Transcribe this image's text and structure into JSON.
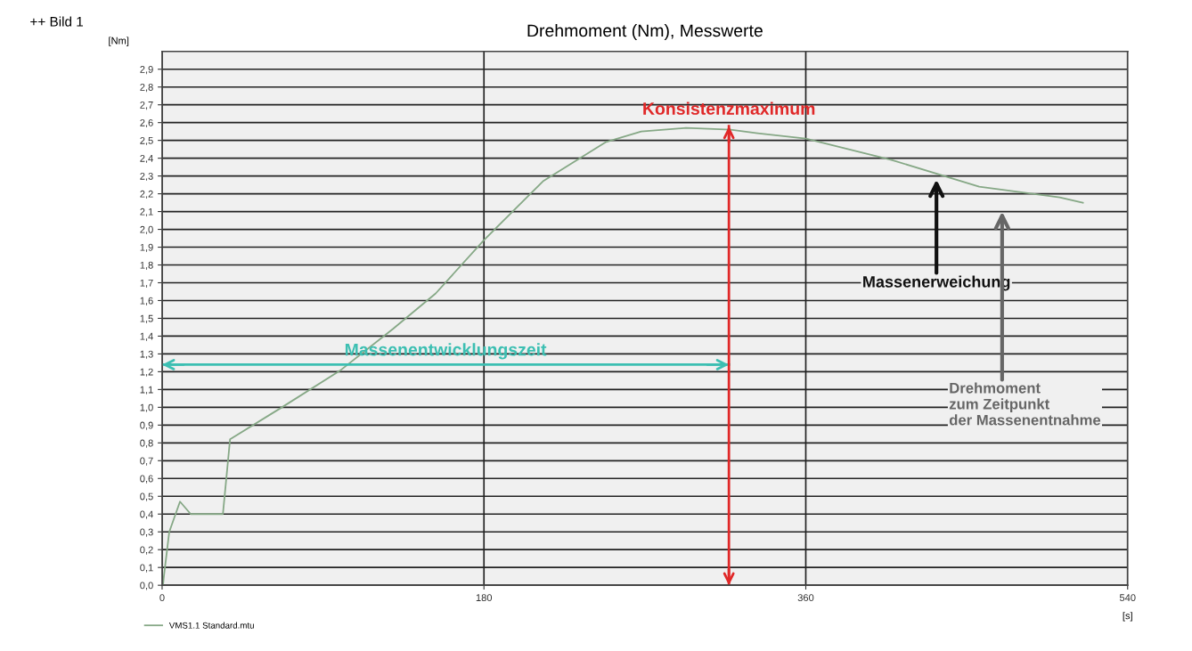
{
  "chart_data": {
    "type": "line",
    "title": "Drehmoment (Nm), Messwerte",
    "xlabel": "[s]",
    "ylabel": "[Nm]",
    "x": [
      0.5,
      1,
      4,
      10,
      16,
      34,
      38,
      67,
      100,
      129,
      153,
      180,
      213,
      248,
      268,
      293,
      318,
      333,
      360,
      408,
      457,
      502,
      515
    ],
    "series": [
      {
        "name": "VMS1.1 Standard.mtu",
        "color": "#86a886",
        "values": [
          0,
          0.05,
          0.3,
          0.47,
          0.4,
          0.4,
          0.82,
          1.0,
          1.21,
          1.44,
          1.64,
          1.94,
          2.27,
          2.49,
          2.55,
          2.57,
          2.56,
          2.54,
          2.51,
          2.39,
          2.24,
          2.18,
          2.15
        ]
      },
      {
        "name": "Massenentwicklungszeit",
        "color": "#3cbfb2",
        "x": [
          0,
          317
        ],
        "values": [
          1.24,
          1.24
        ]
      }
    ],
    "xlim": [
      0,
      540
    ],
    "ylim": [
      0,
      3.0
    ],
    "xticks": [
      0,
      180,
      360,
      540
    ],
    "yticks": [
      {
        "value": 0,
        "label": "0,0"
      },
      {
        "value": 0.1,
        "label": "0,1"
      },
      {
        "value": 0.2,
        "label": "0,2"
      },
      {
        "value": 0.3,
        "label": "0,3"
      },
      {
        "value": 0.4,
        "label": "0,4"
      },
      {
        "value": 0.5,
        "label": "0,5"
      },
      {
        "value": 0.6,
        "label": "0,6"
      },
      {
        "value": 0.7,
        "label": "0,7"
      },
      {
        "value": 0.8,
        "label": "0,8"
      },
      {
        "value": 0.9,
        "label": "0,9"
      },
      {
        "value": 1.0,
        "label": "1,0"
      },
      {
        "value": 1.1,
        "label": "1,1"
      },
      {
        "value": 1.2,
        "label": "1,2"
      },
      {
        "value": 1.3,
        "label": "1,3"
      },
      {
        "value": 1.4,
        "label": "1,4"
      },
      {
        "value": 1.5,
        "label": "1,5"
      },
      {
        "value": 1.6,
        "label": "1,6"
      },
      {
        "value": 1.7,
        "label": "1,7"
      },
      {
        "value": 1.8,
        "label": "1,8"
      },
      {
        "value": 1.9,
        "label": "1,9"
      },
      {
        "value": 2.0,
        "label": "2,0"
      },
      {
        "value": 2.1,
        "label": "2,1"
      },
      {
        "value": 2.2,
        "label": "2,2"
      },
      {
        "value": 2.3,
        "label": "2,3"
      },
      {
        "value": 2.4,
        "label": "2,4"
      },
      {
        "value": 2.5,
        "label": "2,5"
      },
      {
        "value": 2.6,
        "label": "2,6"
      },
      {
        "value": 2.7,
        "label": "2,7"
      },
      {
        "value": 2.8,
        "label": "2,8"
      },
      {
        "value": 2.9,
        "label": "2,9"
      }
    ],
    "ref_lines": [
      {
        "axis": "x",
        "value": 317,
        "label": "Konsistenzmaximum",
        "color": "#e02828"
      }
    ],
    "annotations": [
      "++ Bild 1",
      "Massenerweichung",
      "Drehmoment\nzum Zeitpunkt\nder Massenentnahme"
    ],
    "grid": true,
    "legend": "bottom left",
    "line_style": "solid",
    "marker": "none"
  }
}
